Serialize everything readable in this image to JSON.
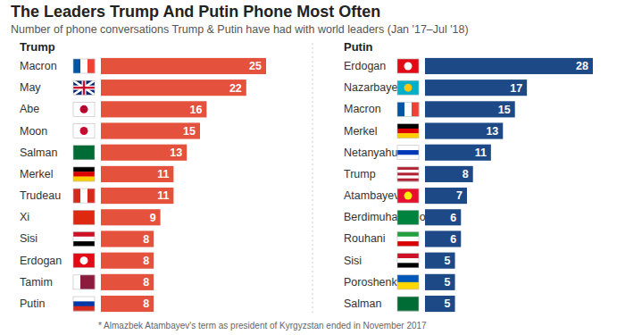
{
  "header": {
    "title": "The Leaders Trump And Putin Phone Most Often",
    "subtitle": "Number of phone conversations Trump & Putin have had with world leaders (Jan '17–Jul '18)"
  },
  "chart_data": [
    {
      "type": "bar",
      "orientation": "horizontal",
      "title": "Trump",
      "categories": [
        "Macron",
        "May",
        "Abe",
        "Moon",
        "Salman",
        "Merkel",
        "Trudeau",
        "Xi",
        "Sisi",
        "Erdogan",
        "Tamim",
        "Putin"
      ],
      "values": [
        25,
        22,
        16,
        15,
        13,
        11,
        11,
        9,
        8,
        8,
        8,
        8
      ],
      "color": "#e4513d",
      "xlim": [
        0,
        25
      ],
      "data_labels": true,
      "tick_labels": "y",
      "grid": false
    },
    {
      "type": "bar",
      "orientation": "horizontal",
      "title": "Putin",
      "categories": [
        "Erdogan",
        "Nazarbayev",
        "Macron",
        "Merkel",
        "Netanyahu",
        "Trump",
        "Atambayev*",
        "Berdimuhamedov",
        "Rouhani",
        "Sisi",
        "Poroshenko",
        "Salman"
      ],
      "values": [
        28,
        17,
        15,
        13,
        11,
        8,
        7,
        6,
        6,
        5,
        5,
        5
      ],
      "color": "#1d4a87",
      "xlim": [
        0,
        28
      ],
      "data_labels": true,
      "tick_labels": "y",
      "grid": false
    }
  ],
  "footer": {
    "note": "* Almazbek Atambayev's term as president of Kyrgyzstan ended in November 2017"
  }
}
